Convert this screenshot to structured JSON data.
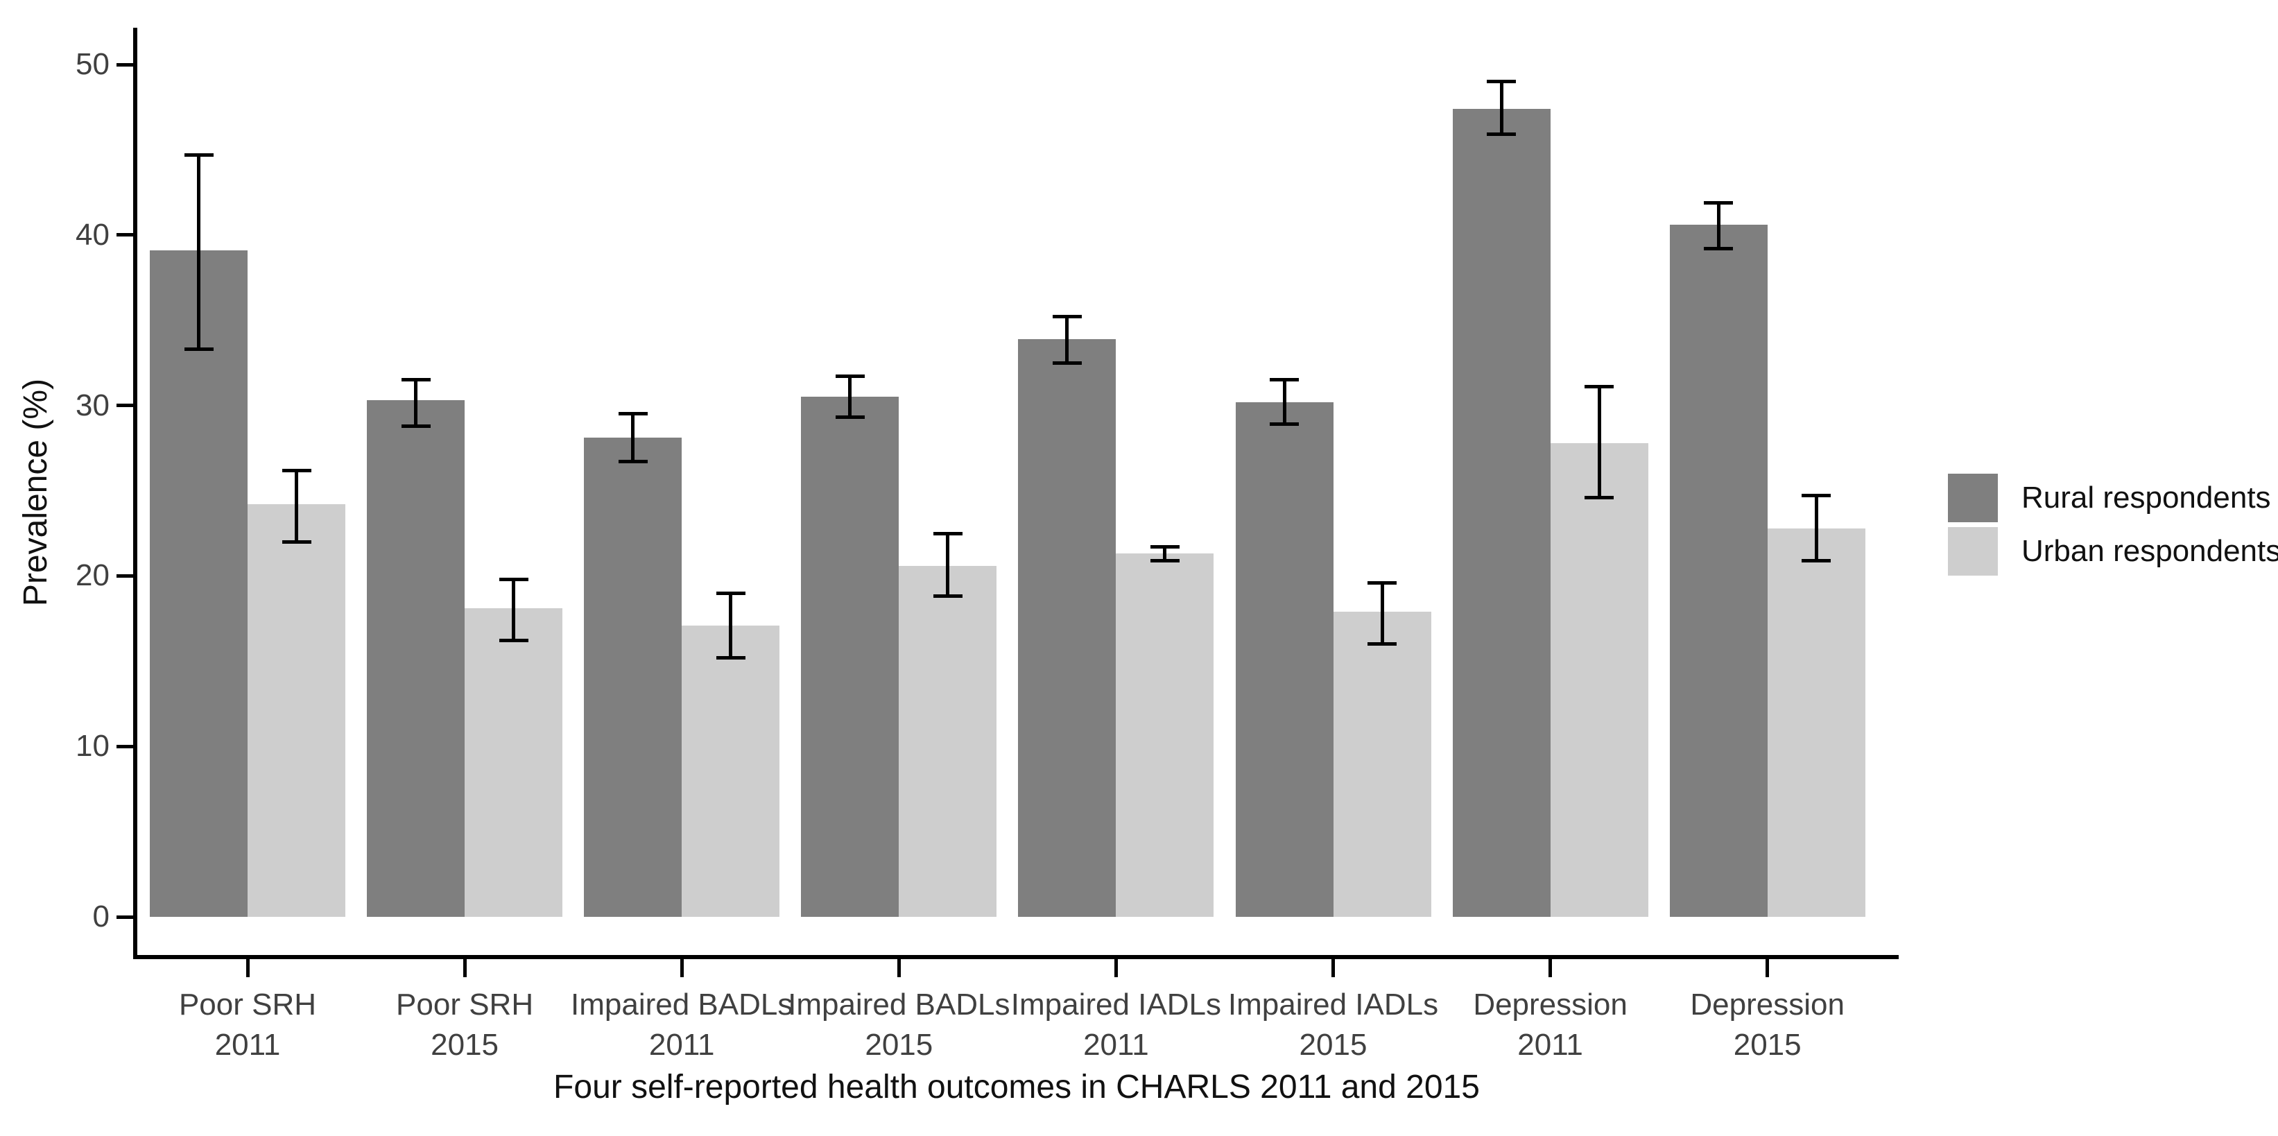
{
  "figure": {
    "background": "#ffffff",
    "accent_black": "#000000",
    "axis_text_color": "#404040"
  },
  "chart_data": {
    "type": "bar",
    "title": "",
    "xlabel": "Four self-reported health outcomes in CHARLS 2011 and 2015",
    "ylabel": "Prevalence (%)",
    "ylim": [
      0,
      50
    ],
    "y_ticks": [
      0,
      10,
      20,
      30,
      40,
      50
    ],
    "grid": false,
    "error_bars": true,
    "legend_position": "right",
    "categories": [
      "Poor SRH\n2011",
      "Poor SRH\n2015",
      "Impaired BADLs\n2011",
      "Impaired BADLs\n2015",
      "Impaired IADLs\n2011",
      "Impaired IADLs\n2015",
      "Depression\n2011",
      "Depression\n2015"
    ],
    "series": [
      {
        "name": "Rural respondents",
        "color": "#7f7f7f",
        "values": [
          39.1,
          30.3,
          28.1,
          30.5,
          33.9,
          30.2,
          47.4,
          40.6
        ],
        "ci_low": [
          33.3,
          28.8,
          26.7,
          29.3,
          32.5,
          28.9,
          45.9,
          39.2
        ],
        "ci_high": [
          44.7,
          31.5,
          29.5,
          31.7,
          35.2,
          31.5,
          49.0,
          41.9
        ]
      },
      {
        "name": "Urban respondents",
        "color": "#cecece",
        "values": [
          24.2,
          18.1,
          17.1,
          20.6,
          21.3,
          17.9,
          27.8,
          22.8
        ],
        "ci_low": [
          22.0,
          16.2,
          15.2,
          18.8,
          20.9,
          16.0,
          24.6,
          20.9
        ],
        "ci_high": [
          26.2,
          19.8,
          19.0,
          22.5,
          21.7,
          19.6,
          31.1,
          24.7
        ]
      }
    ]
  }
}
